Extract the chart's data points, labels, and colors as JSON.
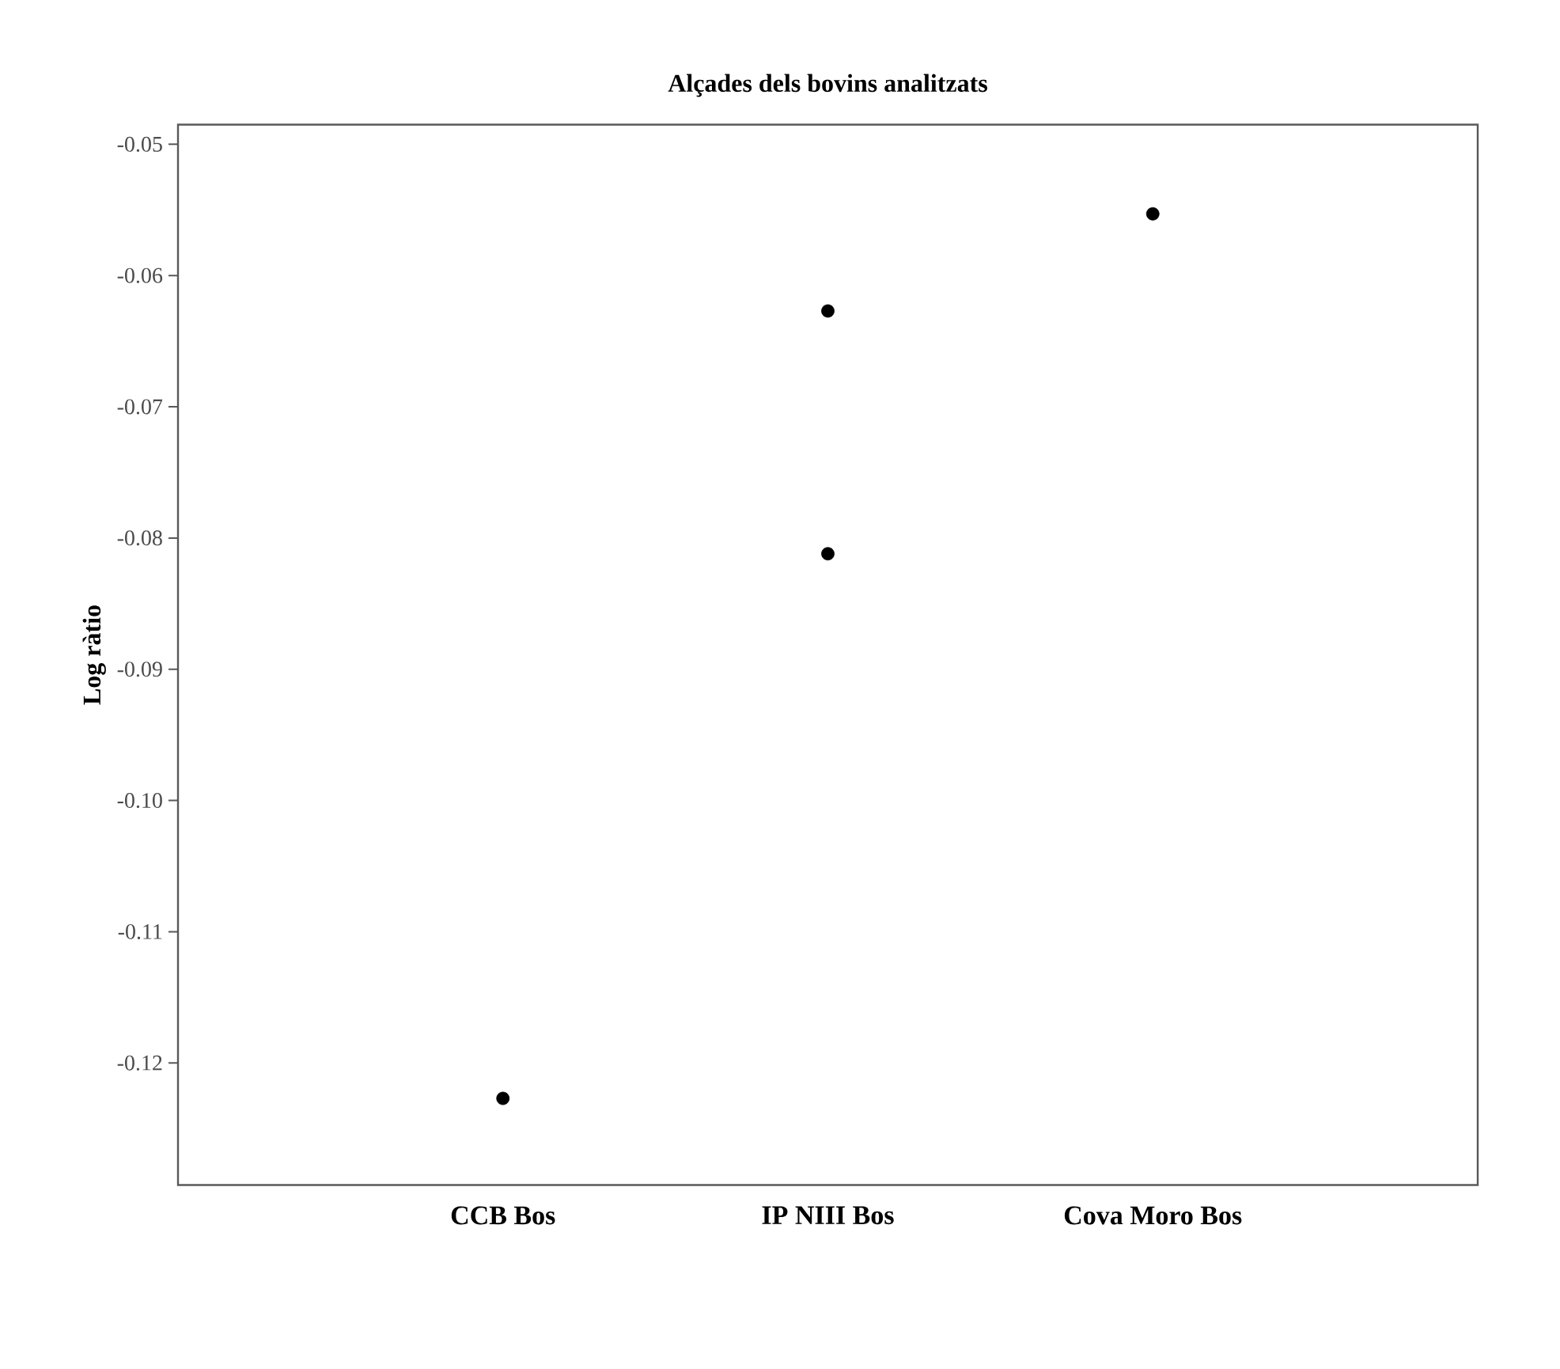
{
  "chart_data": {
    "type": "scatter",
    "title": "Alçades dels bovins analitzats",
    "ylabel": "Log ràtio",
    "categories": [
      "CCB Bos",
      "IP NIII Bos",
      "Cova Moro Bos"
    ],
    "series": [
      {
        "color": "#000000",
        "values": [
          -0.1227,
          -0.0627,
          -0.0553
        ]
      },
      {
        "color": "#000000",
        "values": [
          null,
          -0.0812,
          null
        ]
      }
    ],
    "ylim": [
      -0.1293,
      -0.0485
    ],
    "yticks": [
      -0.12,
      -0.11,
      {
        "value": -0.1,
        "label": "-0.10"
      },
      -0.09,
      -0.08,
      -0.07,
      -0.06,
      -0.05
    ],
    "grid": false
  }
}
